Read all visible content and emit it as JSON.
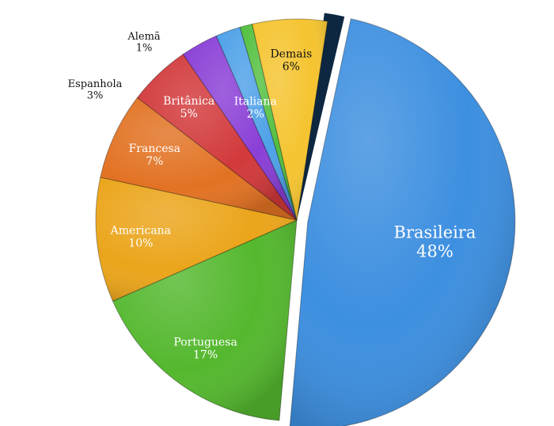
{
  "chart_data": {
    "type": "pie",
    "title": "",
    "separator_color": "#0d2740",
    "slices": [
      {
        "name": "Brasileira",
        "label": "Brasileira",
        "pct_label": "48%",
        "value": 48,
        "color": "#3d8fe0",
        "text_color": "#ffffff",
        "exploded": true
      },
      {
        "name": "Portuguesa",
        "label": "Portuguesa",
        "pct_label": "17%",
        "value": 17,
        "color": "#54b82e",
        "text_color": "#ffffff"
      },
      {
        "name": "Americana",
        "label": "Americana",
        "pct_label": "10%",
        "value": 10,
        "color": "#eba51b",
        "text_color": "#ffffff"
      },
      {
        "name": "Francesa",
        "label": "Francesa",
        "pct_label": "7%",
        "value": 7,
        "color": "#e27223",
        "text_color": "#ffffff"
      },
      {
        "name": "Britânica",
        "label": "Britânica",
        "pct_label": "5%",
        "value": 5,
        "color": "#d2393b",
        "text_color": "#ffffff"
      },
      {
        "name": "Espanhola",
        "label": "Espanhola",
        "pct_label": "3%",
        "value": 3,
        "color": "#8a3fd6",
        "text_color": "#111111"
      },
      {
        "name": "Italiana",
        "label": "Italiana",
        "pct_label": "2%",
        "value": 2,
        "color": "#4ea1e8",
        "text_color": "#ffffff"
      },
      {
        "name": "Alemã",
        "label": "Alemã",
        "pct_label": "1%",
        "value": 1,
        "color": "#53c040",
        "text_color": "#111111"
      },
      {
        "name": "Demais",
        "label": "Demais",
        "pct_label": "6%",
        "value": 6,
        "color": "#f5c430",
        "text_color": "#111111"
      }
    ]
  }
}
